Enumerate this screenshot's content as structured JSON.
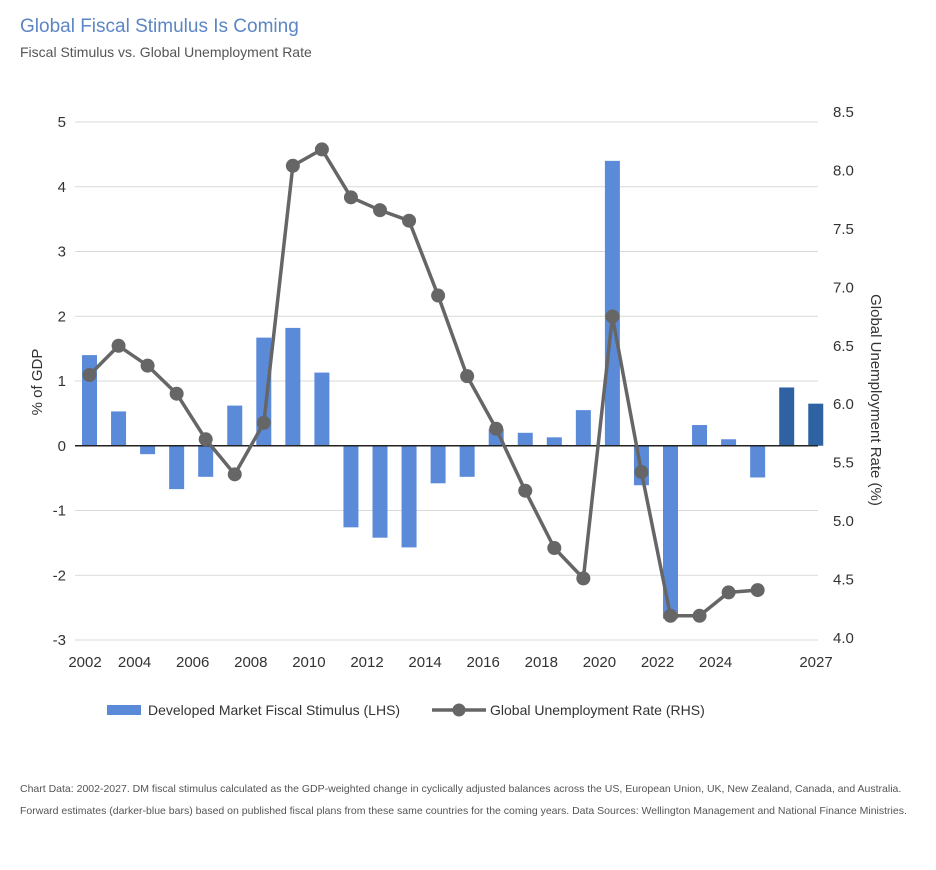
{
  "header": {
    "title": "Global Fiscal Stimulus Is Coming",
    "subtitle": "Fiscal Stimulus vs. Global Unemployment Rate"
  },
  "footnote": "Chart Data: 2002-2027. DM fiscal stimulus calculated as the GDP-weighted change in cyclically adjusted balances across the US, European Union, UK, New Zealand, Canada, and Australia. Forward estimates (darker-blue bars) based on published fiscal plans from these same countries for the coming years. Data Sources: Wellington Management and National Finance Ministries.",
  "chart_data": {
    "type": "bar+line",
    "title": "Global Fiscal Stimulus Is Coming",
    "subtitle": "Fiscal Stimulus vs. Global Unemployment Rate",
    "ylabel_left": "% of GDP",
    "ylabel_right": "Global Unemployment Rate (%)",
    "ylim_left": [
      -3,
      5
    ],
    "ylim_right": [
      4.0,
      8.5
    ],
    "left_ticks": [
      "5",
      "4",
      "3",
      "2",
      "1",
      "0",
      "-1",
      "-2",
      "-3"
    ],
    "right_ticks": [
      "8.5",
      "8.0",
      "7.5",
      "7.0",
      "6.5",
      "6.0",
      "5.5",
      "5.0",
      "4.5",
      "4.0"
    ],
    "x_tick_labels": [
      "2002",
      "2004",
      "2006",
      "2008",
      "2010",
      "2012",
      "2014",
      "2016",
      "2018",
      "2020",
      "2022",
      "2024",
      "2027"
    ],
    "grid": true,
    "legend_position": "bottom",
    "series": [
      {
        "name": "Developed Market Fiscal Stimulus (LHS)",
        "kind": "bar",
        "axis": "left",
        "color": "#5b8ad9",
        "forecast_color": "#2f62a3",
        "x": [
          2002,
          2003,
          2004,
          2005,
          2006,
          2007,
          2008,
          2009,
          2010,
          2011,
          2012,
          2013,
          2014,
          2015,
          2016,
          2017,
          2018,
          2019,
          2020,
          2021,
          2022,
          2023,
          2024,
          2025,
          2026,
          2027
        ],
        "values": [
          1.4,
          0.53,
          -0.13,
          -0.67,
          -0.48,
          0.62,
          1.67,
          1.82,
          1.13,
          -1.26,
          -1.42,
          -1.57,
          -0.58,
          -0.48,
          0.26,
          0.2,
          0.13,
          0.55,
          4.4,
          -0.61,
          -2.67,
          0.32,
          0.1,
          -0.49,
          0.9,
          0.65
        ],
        "forecast_years": [
          2026,
          2027
        ]
      },
      {
        "name": "Global Unemployment Rate (RHS)",
        "kind": "line",
        "axis": "right",
        "color": "#666666",
        "x": [
          2002,
          2003,
          2004,
          2005,
          2006,
          2007,
          2008,
          2009,
          2010,
          2011,
          2012,
          2013,
          2014,
          2015,
          2016,
          2017,
          2018,
          2019,
          2020,
          2021,
          2022,
          2023,
          2024,
          2025
        ],
        "values": [
          6.25,
          6.5,
          6.33,
          6.09,
          5.7,
          5.4,
          5.84,
          8.04,
          8.18,
          7.77,
          7.66,
          7.57,
          6.93,
          6.24,
          5.79,
          5.26,
          4.77,
          4.51,
          6.75,
          5.42,
          4.19,
          4.19,
          4.39,
          4.41
        ]
      }
    ]
  }
}
